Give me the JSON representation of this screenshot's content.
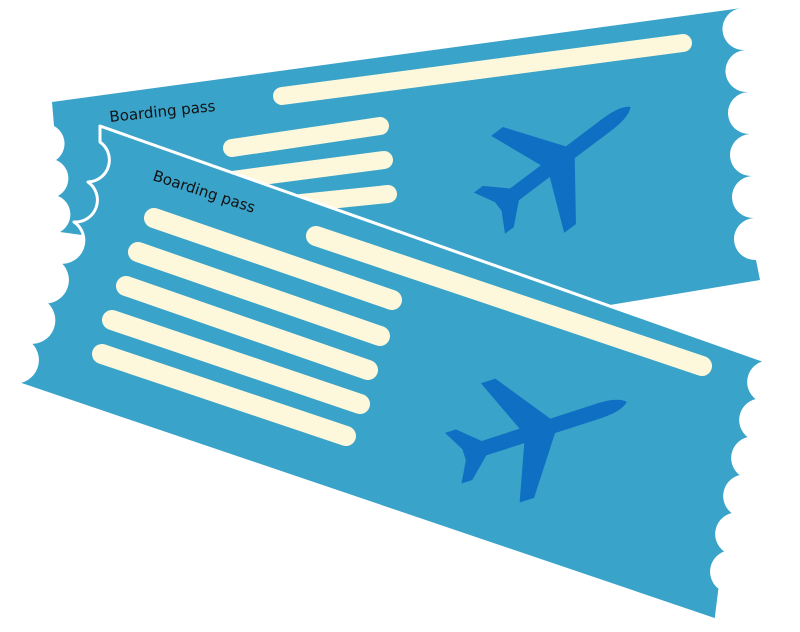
{
  "tickets": [
    {
      "id": "back",
      "label": "Boarding pass"
    },
    {
      "id": "front",
      "label": "Boarding pass"
    }
  ],
  "colors": {
    "ticket": "#3aa3c9",
    "stripe": "#fdf8dc",
    "plane": "#0f70c3",
    "edge": "#ffffff"
  },
  "icons": [
    "airplane-icon",
    "airplane-icon"
  ]
}
